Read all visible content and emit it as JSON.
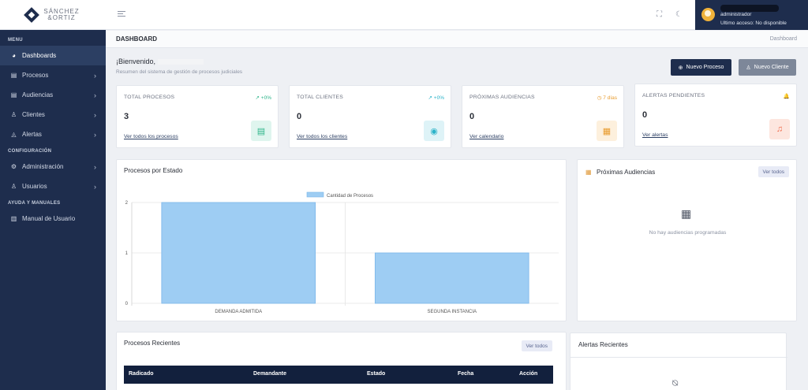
{
  "brand": {
    "line1": "SÁNCHEZ",
    "line2": "&ORTIZ"
  },
  "sidebar": {
    "section_menu": "MENU",
    "section_config": "CONFIGURACIÓN",
    "section_help": "AYUDA Y MANUALES",
    "items": [
      {
        "label": "Dashboards",
        "icon": "dashboard-icon"
      },
      {
        "label": "Procesos",
        "icon": "document-icon"
      },
      {
        "label": "Audiencias",
        "icon": "calendar-icon"
      },
      {
        "label": "Clientes",
        "icon": "user-icon"
      },
      {
        "label": "Alertas",
        "icon": "bell-icon"
      },
      {
        "label": "Administración",
        "icon": "gear-icon"
      },
      {
        "label": "Usuarios",
        "icon": "users-icon"
      },
      {
        "label": "Manual de Usuario",
        "icon": "book-icon"
      }
    ]
  },
  "topbar": {
    "user_role": "administrador",
    "last_access": "Ultimo acceso: No disponible"
  },
  "breadcrumb": {
    "title": "DASHBOARD",
    "current": "Dashboard"
  },
  "welcome": {
    "greeting": "¡Bienvenido,",
    "subtitle": "Resumen del sistema de gestión de procesos judiciales"
  },
  "actions": {
    "new_process": "Nuevo Proceso",
    "new_client": "Nuevo Cliente"
  },
  "stats": [
    {
      "title": "TOTAL PROCESOS",
      "trend": "↗ +0%",
      "value": "3",
      "link": "Ver todos los procesos",
      "color": "#2fb58a",
      "bg": "#dff5ee"
    },
    {
      "title": "TOTAL CLIENTES",
      "trend": "↗ +0%",
      "value": "0",
      "link": "Ver todos los clientes",
      "color": "#2bb3c9",
      "bg": "#def3f7"
    },
    {
      "title": "PRÓXIMAS AUDIENCIAS",
      "trend": "◷ 7 días",
      "value": "0",
      "link": "Ver calendario",
      "color": "#e89b2d",
      "bg": "#fdf0dd"
    },
    {
      "title": "ALERTAS PENDIENTES",
      "trend": "🔔",
      "value": "0",
      "link": "Ver alertas",
      "color": "#ef6a4a",
      "bg": "#fde6df"
    }
  ],
  "chart_panel": {
    "title": "Procesos por Estado"
  },
  "audiencias_panel": {
    "title": "Próximas Audiencias",
    "view_all": "Ver todos",
    "empty": "No hay audiencias programadas"
  },
  "recent_panel": {
    "title": "Procesos Recientes",
    "view_all": "Ver todos",
    "columns": [
      "Radicado",
      "Demandante",
      "Estado",
      "Fecha",
      "Acción"
    ]
  },
  "alerts_panel": {
    "title": "Alertas Recientes"
  },
  "chart_data": {
    "type": "bar",
    "title": "",
    "categories": [
      "DEMANDA ADMITIDA",
      "SEGUNDA INSTANCIA"
    ],
    "series": [
      {
        "name": "Cantidad de Procesos",
        "values": [
          2,
          1
        ]
      }
    ],
    "ylim": [
      0,
      2
    ],
    "yticks": [
      "0",
      "1",
      "2"
    ],
    "grid": true,
    "legend": "top-center",
    "bar_color": "#9ecdf3",
    "bar_border": "#7ab6ea"
  }
}
